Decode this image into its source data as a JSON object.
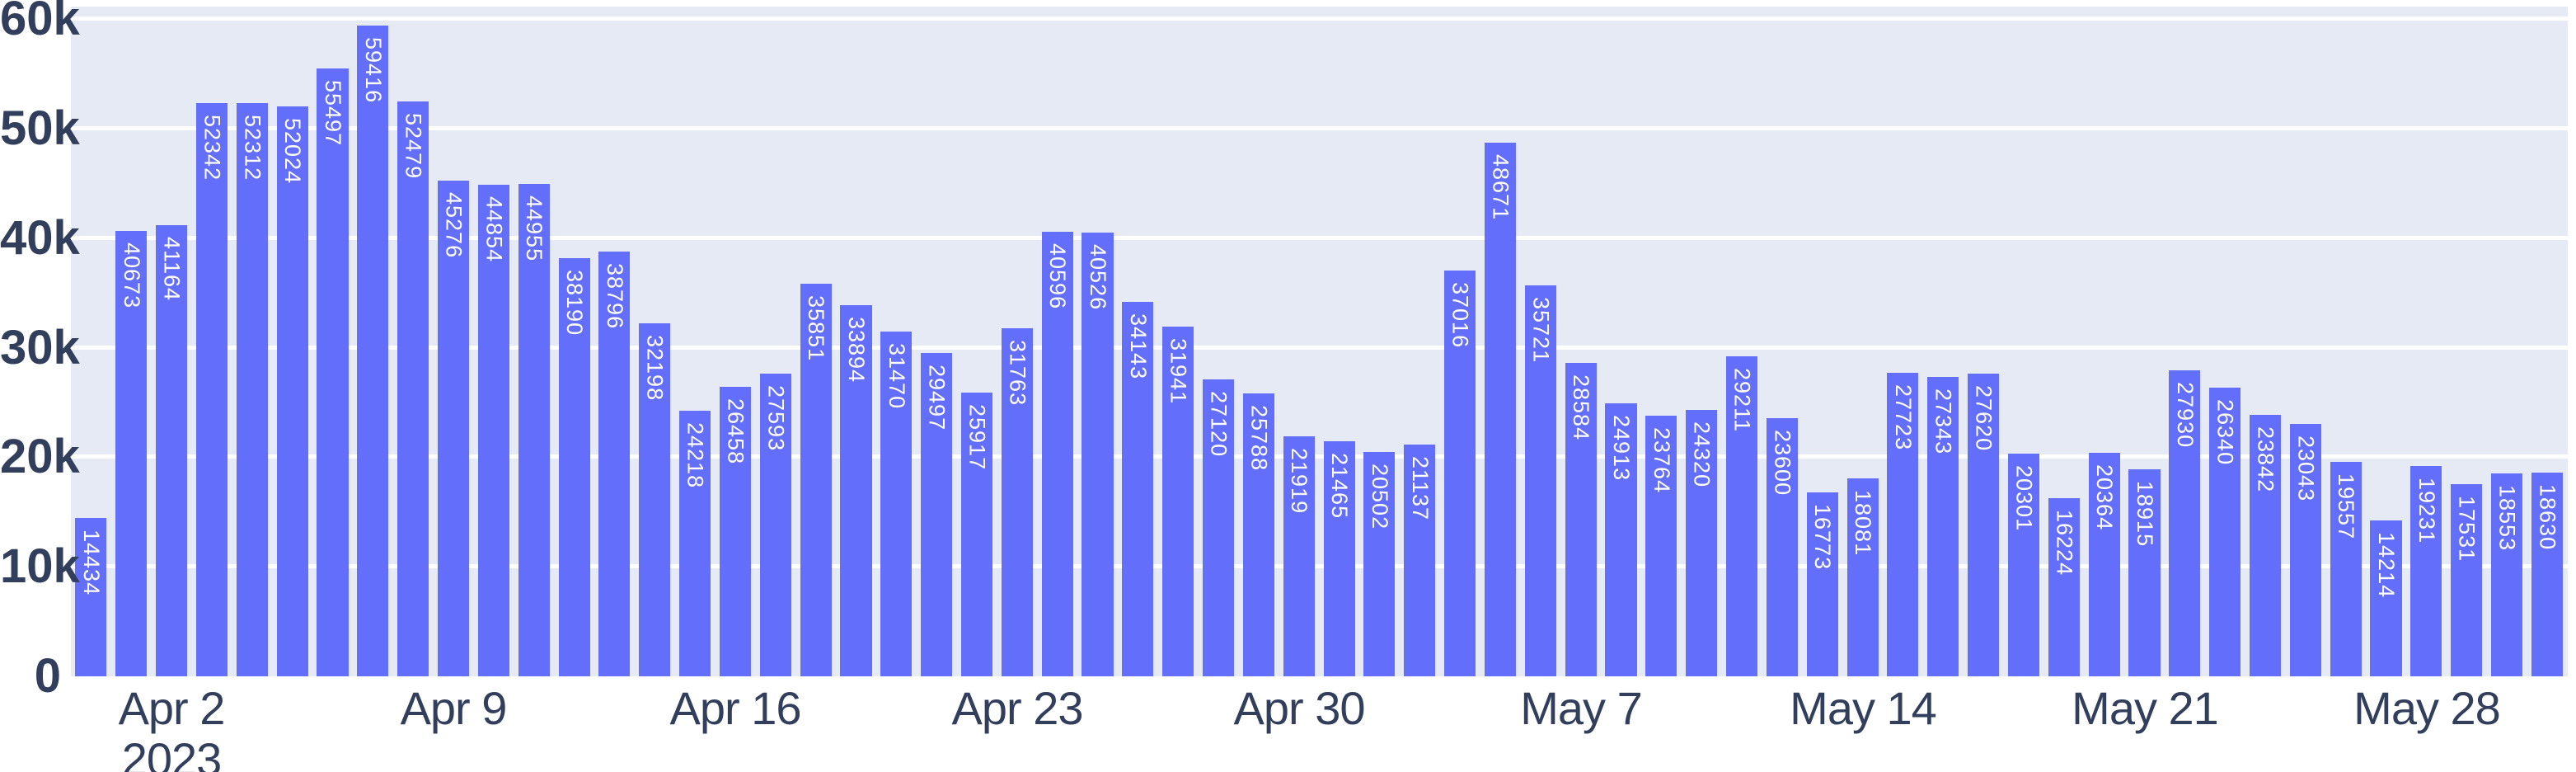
{
  "chart_data": {
    "type": "bar",
    "title": "",
    "xlabel": "",
    "ylabel": "",
    "ylim": [
      0,
      60000
    ],
    "grid": "horizontal-white",
    "legend": "none",
    "bar_color": "#636efa",
    "plot_bg_color": "#e5eaf4",
    "axis_text_color": "#323f5c",
    "bar_label_color": "#ffffff",
    "x": [
      "2023-03-31",
      "2023-04-01",
      "2023-04-02",
      "2023-04-03",
      "2023-04-04",
      "2023-04-05",
      "2023-04-06",
      "2023-04-07",
      "2023-04-08",
      "2023-04-09",
      "2023-04-10",
      "2023-04-11",
      "2023-04-12",
      "2023-04-13",
      "2023-04-14",
      "2023-04-15",
      "2023-04-16",
      "2023-04-17",
      "2023-04-18",
      "2023-04-19",
      "2023-04-20",
      "2023-04-21",
      "2023-04-22",
      "2023-04-23",
      "2023-04-24",
      "2023-04-25",
      "2023-04-26",
      "2023-04-27",
      "2023-04-28",
      "2023-04-29",
      "2023-04-30",
      "2023-05-01",
      "2023-05-02",
      "2023-05-03",
      "2023-05-04",
      "2023-05-05",
      "2023-05-06",
      "2023-05-07",
      "2023-05-08",
      "2023-05-09",
      "2023-05-10",
      "2023-05-11",
      "2023-05-12",
      "2023-05-13",
      "2023-05-14",
      "2023-05-15",
      "2023-05-16",
      "2023-05-17",
      "2023-05-18",
      "2023-05-19",
      "2023-05-20",
      "2023-05-21",
      "2023-05-22",
      "2023-05-23",
      "2023-05-24",
      "2023-05-25",
      "2023-05-26",
      "2023-05-27",
      "2023-05-28",
      "2023-05-29",
      "2023-05-30",
      "2023-05-31"
    ],
    "values": [
      14434,
      40673,
      41164,
      52342,
      52312,
      52024,
      55497,
      59416,
      52479,
      45276,
      44854,
      44955,
      38190,
      38796,
      32198,
      24218,
      26458,
      27593,
      35851,
      33894,
      31470,
      29497,
      25917,
      31763,
      40596,
      40526,
      34143,
      31941,
      27120,
      25788,
      21919,
      21465,
      20502,
      21137,
      37016,
      48671,
      35721,
      28584,
      24913,
      23764,
      24320,
      29211,
      23600,
      16773,
      18081,
      27723,
      27343,
      27620,
      20301,
      16224,
      20364,
      18915,
      27930,
      26340,
      23842,
      23043,
      19557,
      14214,
      19231,
      17531,
      18553,
      18630
    ],
    "y_ticks": [
      {
        "value": 0,
        "label": "0"
      },
      {
        "value": 10000,
        "label": "10k"
      },
      {
        "value": 20000,
        "label": "20k"
      },
      {
        "value": 30000,
        "label": "30k"
      },
      {
        "value": 40000,
        "label": "40k"
      },
      {
        "value": 50000,
        "label": "50k"
      },
      {
        "value": 60000,
        "label": "60k"
      }
    ],
    "x_ticks": [
      {
        "index": 2,
        "label": "Apr 2",
        "sub": "2023"
      },
      {
        "index": 9,
        "label": "Apr 9",
        "sub": ""
      },
      {
        "index": 16,
        "label": "Apr 16",
        "sub": ""
      },
      {
        "index": 23,
        "label": "Apr 23",
        "sub": ""
      },
      {
        "index": 30,
        "label": "Apr 30",
        "sub": ""
      },
      {
        "index": 37,
        "label": "May 7",
        "sub": ""
      },
      {
        "index": 44,
        "label": "May 14",
        "sub": ""
      },
      {
        "index": 51,
        "label": "May 21",
        "sub": ""
      },
      {
        "index": 58,
        "label": "May 28",
        "sub": ""
      }
    ]
  }
}
